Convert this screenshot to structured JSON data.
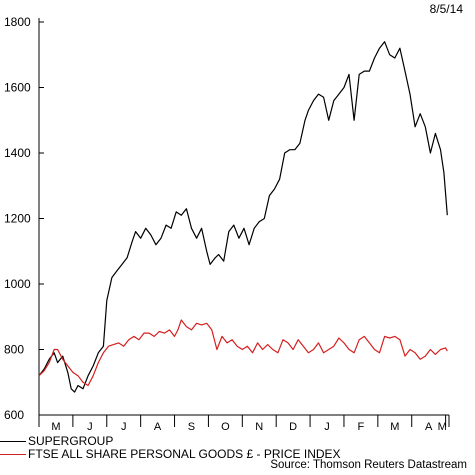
{
  "header": {
    "date": "8/5/14"
  },
  "source": "Source: Thomson Reuters Datastream",
  "colors": {
    "supergroup": "#000000",
    "ftse": "#d42020"
  },
  "chart_data": {
    "type": "line",
    "title": "",
    "xlabel": "",
    "ylabel": "",
    "ylim": [
      600,
      1800
    ],
    "yticks": [
      600,
      800,
      1000,
      1200,
      1400,
      1600,
      1800
    ],
    "xlim": [
      0,
      12.1
    ],
    "xticks": [
      "M",
      "J",
      "J",
      "A",
      "S",
      "O",
      "N",
      "D",
      "J",
      "F",
      "M",
      "A",
      "M"
    ],
    "grid": false,
    "legend_position": "bottom-left",
    "series": [
      {
        "name": "SUPERGROUP",
        "color": "#000000",
        "x": [
          0,
          0.15,
          0.3,
          0.45,
          0.55,
          0.7,
          0.85,
          0.95,
          1.05,
          1.15,
          1.3,
          1.45,
          1.6,
          1.75,
          1.9,
          2.0,
          2.15,
          2.3,
          2.45,
          2.6,
          2.75,
          2.85,
          3.0,
          3.15,
          3.3,
          3.45,
          3.6,
          3.75,
          3.9,
          4.05,
          4.2,
          4.35,
          4.5,
          4.65,
          4.8,
          4.95,
          5.05,
          5.2,
          5.3,
          5.45,
          5.6,
          5.75,
          5.9,
          6.05,
          6.2,
          6.35,
          6.5,
          6.65,
          6.8,
          6.95,
          7.1,
          7.25,
          7.4,
          7.55,
          7.7,
          7.85,
          7.95,
          8.1,
          8.25,
          8.4,
          8.55,
          8.7,
          8.85,
          9.0,
          9.15,
          9.3,
          9.45,
          9.6,
          9.75,
          9.9,
          10.05,
          10.2,
          10.35,
          10.5,
          10.65,
          10.8,
          10.95,
          11.1,
          11.25,
          11.4,
          11.55,
          11.7,
          11.85,
          11.95,
          12.05
        ],
        "values": [
          720,
          740,
          770,
          790,
          760,
          780,
          730,
          680,
          670,
          690,
          680,
          720,
          750,
          790,
          810,
          950,
          1020,
          1040,
          1060,
          1080,
          1130,
          1160,
          1140,
          1170,
          1150,
          1120,
          1140,
          1180,
          1170,
          1220,
          1210,
          1230,
          1170,
          1140,
          1170,
          1100,
          1060,
          1080,
          1090,
          1070,
          1160,
          1180,
          1140,
          1170,
          1120,
          1170,
          1190,
          1200,
          1270,
          1290,
          1320,
          1400,
          1410,
          1410,
          1430,
          1500,
          1530,
          1560,
          1580,
          1570,
          1500,
          1560,
          1580,
          1600,
          1640,
          1500,
          1640,
          1650,
          1650,
          1690,
          1720,
          1740,
          1700,
          1690,
          1720,
          1650,
          1580,
          1480,
          1520,
          1480,
          1400,
          1460,
          1410,
          1340,
          1210
        ]
      },
      {
        "name": "FTSE ALL SHARE PERSONAL GOODS £ - PRICE INDEX",
        "color": "#d42020",
        "x": [
          0,
          0.15,
          0.3,
          0.45,
          0.55,
          0.7,
          0.85,
          1.0,
          1.15,
          1.3,
          1.45,
          1.6,
          1.75,
          1.9,
          2.05,
          2.2,
          2.35,
          2.5,
          2.65,
          2.8,
          2.95,
          3.1,
          3.25,
          3.4,
          3.55,
          3.7,
          3.85,
          4.0,
          4.1,
          4.2,
          4.35,
          4.5,
          4.65,
          4.8,
          4.95,
          5.1,
          5.25,
          5.4,
          5.55,
          5.7,
          5.85,
          6.0,
          6.15,
          6.3,
          6.45,
          6.6,
          6.75,
          6.9,
          7.05,
          7.2,
          7.35,
          7.5,
          7.65,
          7.8,
          7.95,
          8.1,
          8.25,
          8.4,
          8.55,
          8.7,
          8.85,
          9.0,
          9.15,
          9.3,
          9.45,
          9.6,
          9.75,
          9.9,
          10.05,
          10.2,
          10.35,
          10.5,
          10.65,
          10.8,
          10.95,
          11.1,
          11.25,
          11.4,
          11.55,
          11.7,
          11.85,
          12.0,
          12.05
        ],
        "values": [
          720,
          735,
          760,
          800,
          800,
          770,
          750,
          730,
          720,
          700,
          690,
          720,
          760,
          790,
          810,
          815,
          820,
          810,
          830,
          840,
          830,
          850,
          850,
          840,
          855,
          850,
          860,
          840,
          860,
          890,
          870,
          860,
          880,
          875,
          880,
          860,
          800,
          840,
          820,
          830,
          810,
          800,
          810,
          790,
          820,
          800,
          815,
          800,
          790,
          830,
          820,
          800,
          830,
          810,
          790,
          800,
          820,
          790,
          800,
          810,
          835,
          820,
          800,
          790,
          830,
          840,
          820,
          800,
          790,
          840,
          835,
          840,
          830,
          780,
          800,
          790,
          770,
          780,
          800,
          785,
          800,
          805,
          795
        ]
      }
    ]
  }
}
